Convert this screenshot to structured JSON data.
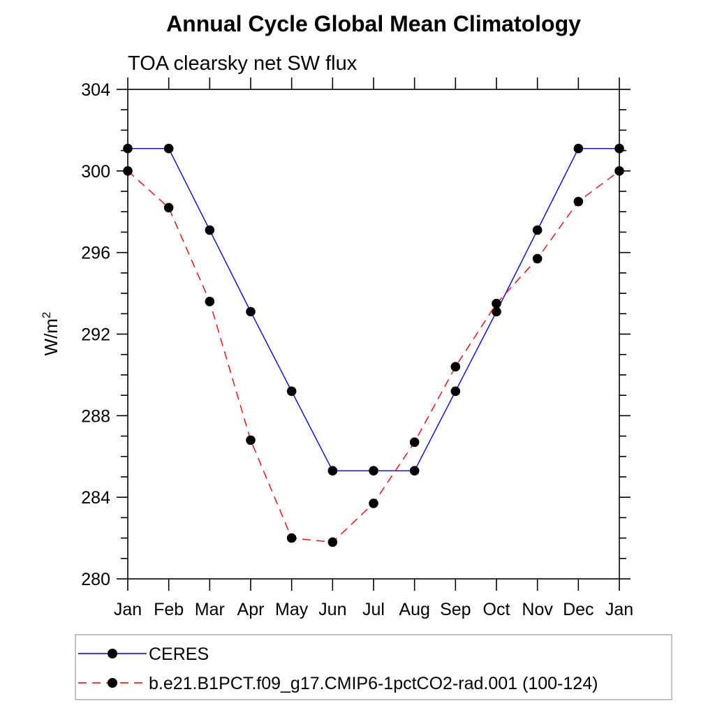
{
  "title": "Annual Cycle Global Mean Climatology",
  "subtitle": "TOA clearsky net SW flux",
  "y_axis": {
    "title": "W/m",
    "title_superscript": "2",
    "min": 280,
    "max": 304,
    "major_tick_step": 4,
    "minor_tick_step": 1,
    "major_tick_labels": [
      "280",
      "284",
      "288",
      "292",
      "296",
      "300",
      "304"
    ]
  },
  "x_axis": {
    "tick_labels": [
      "Jan",
      "Feb",
      "Mar",
      "Apr",
      "May",
      "Jun",
      "Jul",
      "Aug",
      "Sep",
      "Oct",
      "Nov",
      "Dec",
      "Jan"
    ]
  },
  "legend": {
    "border_color": "#999999",
    "items": [
      {
        "label": "CERES",
        "line_color": "#0000ff",
        "line_style": "solid",
        "marker": "filled-circle",
        "marker_color": "#000000"
      },
      {
        "label": "b.e21.B1PCT.f09_g17.CMIP6-1pctCO2-rad.001 (100-124)",
        "line_color": "#ff0000",
        "line_style": "dashed",
        "marker": "filled-circle",
        "marker_color": "#000000"
      }
    ]
  },
  "chart_data": {
    "type": "line",
    "title": "Annual Cycle Global Mean Climatology",
    "subtitle": "TOA clearsky net SW flux",
    "xlabel": "",
    "ylabel": "W/m^2",
    "ylim": [
      280,
      304
    ],
    "y_major_step": 4,
    "y_minor_step": 1,
    "grid": false,
    "legend_position": "bottom-left",
    "categories": [
      "Jan",
      "Feb",
      "Mar",
      "Apr",
      "May",
      "Jun",
      "Jul",
      "Aug",
      "Sep",
      "Oct",
      "Nov",
      "Dec",
      "Jan"
    ],
    "series": [
      {
        "name": "CERES",
        "color": "#0000ff",
        "line_style": "solid",
        "marker": "filled-circle",
        "marker_color": "#000000",
        "values": [
          301.1,
          301.1,
          297.1,
          293.1,
          289.2,
          285.3,
          285.3,
          285.3,
          289.2,
          293.1,
          297.1,
          301.1,
          301.1
        ]
      },
      {
        "name": "b.e21.B1PCT.f09_g17.CMIP6-1pctCO2-rad.001 (100-124)",
        "color": "#ff0000",
        "line_style": "dashed",
        "marker": "filled-circle",
        "marker_color": "#000000",
        "values": [
          300.0,
          298.2,
          293.6,
          286.8,
          282.0,
          281.8,
          283.7,
          286.7,
          290.4,
          293.5,
          295.7,
          298.5,
          300.0
        ]
      }
    ]
  }
}
